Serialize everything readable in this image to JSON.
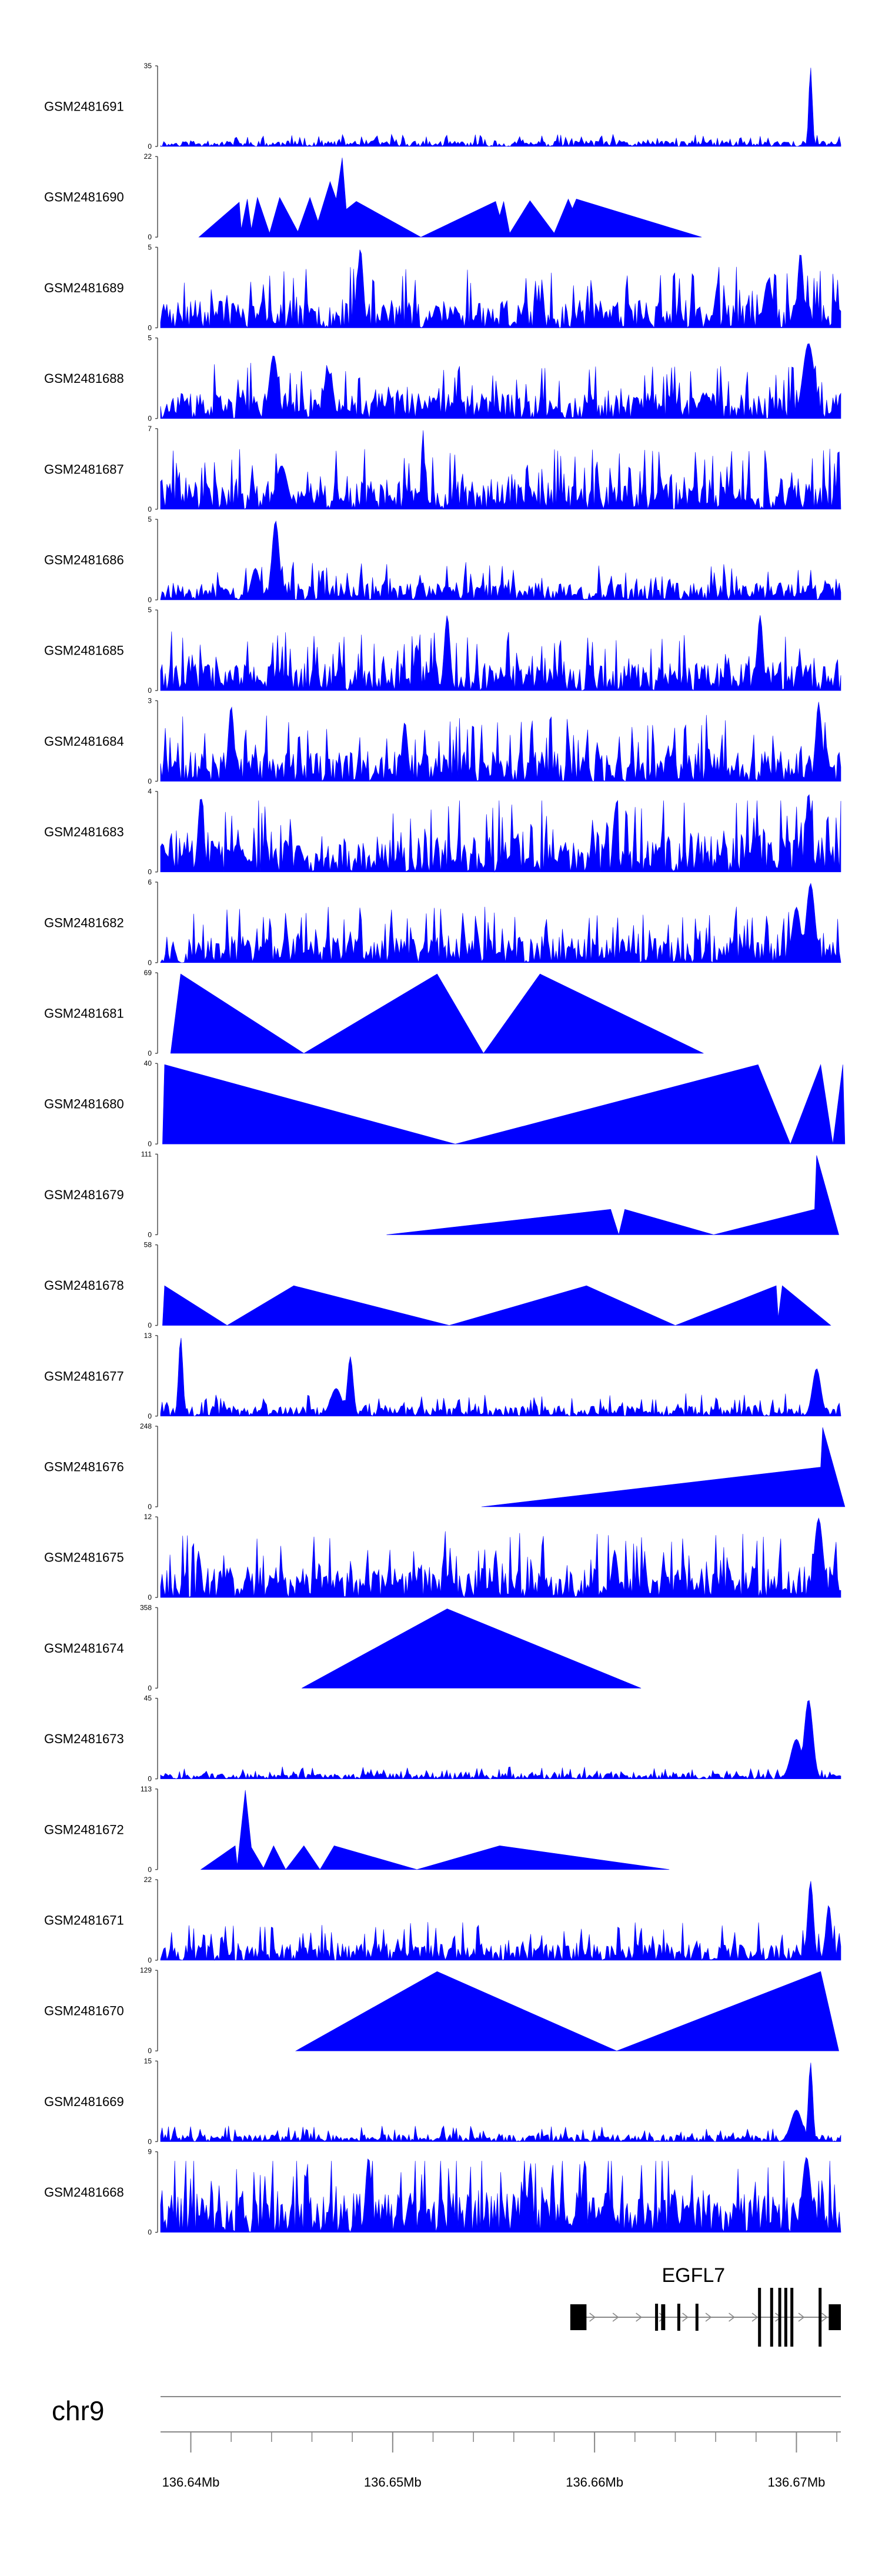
{
  "chart_data": {
    "type": "area",
    "title": "",
    "chromosome": "chr9",
    "x_range_mb": [
      136.6385,
      136.6722
    ],
    "x_ticks": [
      {
        "value": 136.64,
        "label": "136.64Mb"
      },
      {
        "value": 136.65,
        "label": "136.65Mb"
      },
      {
        "value": 136.66,
        "label": "136.66Mb"
      },
      {
        "value": 136.67,
        "label": "136.67Mb"
      }
    ],
    "fill_color": "#0000ff",
    "tracks": [
      {
        "name": "GSM2481691",
        "ymax": "35",
        "mode": "dense",
        "seed": 11,
        "base": 0.07,
        "peaks": [
          [
            136.6707,
            1.0,
            0.00012
          ]
        ]
      },
      {
        "name": "GSM2481690",
        "ymax": "22",
        "mode": "sparse",
        "points": [
          [
            136.6404,
            0
          ],
          [
            136.6424,
            0.44
          ],
          [
            136.6425,
            0.1
          ],
          [
            136.6428,
            0.48
          ],
          [
            136.643,
            0.1
          ],
          [
            136.6433,
            0.5
          ],
          [
            136.6435,
            0.35
          ],
          [
            136.6439,
            0.05
          ],
          [
            136.6444,
            0.5
          ],
          [
            136.6453,
            0.07
          ],
          [
            136.6459,
            0.5
          ],
          [
            136.6463,
            0.2
          ],
          [
            136.6469,
            0.7
          ],
          [
            136.6472,
            0.48
          ],
          [
            136.6475,
            1.0
          ],
          [
            136.6477,
            0.35
          ],
          [
            136.6482,
            0.45
          ],
          [
            136.6514,
            0
          ],
          [
            136.6551,
            0.45
          ],
          [
            136.6553,
            0.27
          ],
          [
            136.6555,
            0.45
          ],
          [
            136.6558,
            0.05
          ],
          [
            136.6568,
            0.46
          ],
          [
            136.658,
            0.05
          ],
          [
            136.6587,
            0.48
          ],
          [
            136.6589,
            0.36
          ],
          [
            136.6591,
            0.48
          ],
          [
            136.6653,
            0
          ]
        ]
      },
      {
        "name": "GSM2481689",
        "ymax": "5",
        "mode": "dense",
        "seed": 23,
        "base": 0.35,
        "peaks": [
          [
            136.6484,
            1.0,
            0.0002
          ],
          [
            136.6702,
            0.95,
            0.0002
          ],
          [
            136.6686,
            0.6,
            0.0003
          ]
        ]
      },
      {
        "name": "GSM2481688",
        "ymax": "5",
        "mode": "dense",
        "seed": 37,
        "base": 0.32,
        "peaks": [
          [
            136.6441,
            0.8,
            0.0003
          ],
          [
            136.6468,
            0.6,
            0.0003
          ],
          [
            136.6706,
            0.95,
            0.0004
          ]
        ]
      },
      {
        "name": "GSM2481687",
        "ymax": "7",
        "mode": "dense",
        "seed": 41,
        "base": 0.35,
        "peaks": [
          [
            136.6515,
            1.0,
            0.00012
          ],
          [
            136.6445,
            0.55,
            0.0004
          ]
        ]
      },
      {
        "name": "GSM2481686",
        "ymax": "5",
        "mode": "dense",
        "seed": 53,
        "base": 0.22,
        "peaks": [
          [
            136.6442,
            1.0,
            0.00025
          ],
          [
            136.6432,
            0.4,
            0.0003
          ]
        ]
      },
      {
        "name": "GSM2481685",
        "ymax": "5",
        "mode": "dense",
        "seed": 61,
        "base": 0.35,
        "peaks": [
          [
            136.6527,
            0.95,
            0.0002
          ],
          [
            136.6682,
            0.95,
            0.0002
          ]
        ]
      },
      {
        "name": "GSM2481684",
        "ymax": "3",
        "mode": "dense",
        "seed": 71,
        "base": 0.38,
        "peaks": [
          [
            136.642,
            0.95,
            0.0002
          ],
          [
            136.6506,
            0.75,
            0.0002
          ],
          [
            136.6711,
            1.0,
            0.0002
          ]
        ]
      },
      {
        "name": "GSM2481683",
        "ymax": "4",
        "mode": "dense",
        "seed": 83,
        "base": 0.45,
        "peaks": [
          [
            136.6405,
            0.95,
            0.0002
          ],
          [
            136.6706,
            1.0,
            0.0002
          ]
        ]
      },
      {
        "name": "GSM2481682",
        "ymax": "6",
        "mode": "dense",
        "seed": 97,
        "base": 0.32,
        "peaks": [
          [
            136.6707,
            1.0,
            0.0003
          ],
          [
            136.67,
            0.7,
            0.0003
          ]
        ]
      },
      {
        "name": "GSM2481681",
        "ymax": "69",
        "mode": "sparse",
        "points": [
          [
            136.639,
            0
          ],
          [
            136.6395,
            1.0
          ],
          [
            136.6456,
            0
          ],
          [
            136.6522,
            1.0
          ],
          [
            136.6545,
            0
          ],
          [
            136.6573,
            1.0
          ],
          [
            136.6654,
            0
          ]
        ]
      },
      {
        "name": "GSM2481680",
        "ymax": "40",
        "mode": "sparse",
        "points": [
          [
            136.6386,
            0
          ],
          [
            136.6387,
            1.0
          ],
          [
            136.6531,
            0
          ],
          [
            136.6681,
            1.0
          ],
          [
            136.6697,
            0
          ],
          [
            136.6712,
            1.0
          ],
          [
            136.6718,
            0
          ],
          [
            136.6723,
            1.0
          ],
          [
            136.6724,
            0
          ]
        ]
      },
      {
        "name": "GSM2481679",
        "ymax": "111",
        "mode": "sparse",
        "points": [
          [
            136.6497,
            0
          ],
          [
            136.6608,
            0.32
          ],
          [
            136.6612,
            0
          ],
          [
            136.6615,
            0.32
          ],
          [
            136.6659,
            0
          ],
          [
            136.6709,
            0.32
          ],
          [
            136.671,
            1.0
          ],
          [
            136.6721,
            0
          ]
        ]
      },
      {
        "name": "GSM2481678",
        "ymax": "58",
        "mode": "sparse",
        "points": [
          [
            136.6386,
            0
          ],
          [
            136.6387,
            0.5
          ],
          [
            136.6418,
            0
          ],
          [
            136.6451,
            0.5
          ],
          [
            136.6528,
            0
          ],
          [
            136.6596,
            0.5
          ],
          [
            136.664,
            0
          ],
          [
            136.669,
            0.5
          ],
          [
            136.6691,
            0.1
          ],
          [
            136.6693,
            0.5
          ],
          [
            136.6717,
            0
          ]
        ]
      },
      {
        "name": "GSM2481677",
        "ymax": "13",
        "mode": "dense",
        "seed": 101,
        "base": 0.13,
        "peaks": [
          [
            136.6395,
            1.0,
            0.00015
          ],
          [
            136.6479,
            0.75,
            0.0002
          ],
          [
            136.6472,
            0.35,
            0.0004
          ],
          [
            136.671,
            0.6,
            0.0003
          ]
        ]
      },
      {
        "name": "GSM2481676",
        "ymax": "248",
        "mode": "sparse",
        "points": [
          [
            136.6544,
            0
          ],
          [
            136.6712,
            0.5
          ],
          [
            136.6713,
            1.0
          ],
          [
            136.6724,
            0
          ]
        ]
      },
      {
        "name": "GSM2481675",
        "ymax": "12",
        "mode": "dense",
        "seed": 113,
        "base": 0.38,
        "peaks": [
          [
            136.6711,
            1.0,
            0.0003
          ],
          [
            136.661,
            0.6,
            0.0002
          ]
        ]
      },
      {
        "name": "GSM2481674",
        "ymax": "358",
        "mode": "sparse",
        "points": [
          [
            136.6455,
            0
          ],
          [
            136.6527,
            1.0
          ],
          [
            136.6623,
            0
          ]
        ]
      },
      {
        "name": "GSM2481673",
        "ymax": "45",
        "mode": "dense",
        "seed": 127,
        "base": 0.07,
        "peaks": [
          [
            136.6706,
            1.0,
            0.0003
          ],
          [
            136.67,
            0.5,
            0.0004
          ]
        ]
      },
      {
        "name": "GSM2481672",
        "ymax": "113",
        "mode": "sparse",
        "points": [
          [
            136.6405,
            0
          ],
          [
            136.6422,
            0.3
          ],
          [
            136.6423,
            0.05
          ],
          [
            136.6427,
            1.0
          ],
          [
            136.643,
            0.28
          ],
          [
            136.6436,
            0.02
          ],
          [
            136.6441,
            0.3
          ],
          [
            136.6447,
            0
          ],
          [
            136.6456,
            0.3
          ],
          [
            136.6464,
            0
          ],
          [
            136.6471,
            0.3
          ],
          [
            136.6512,
            0
          ],
          [
            136.6553,
            0.3
          ],
          [
            136.6637,
            0
          ]
        ]
      },
      {
        "name": "GSM2481671",
        "ymax": "22",
        "mode": "dense",
        "seed": 131,
        "base": 0.22,
        "peaks": [
          [
            136.6707,
            1.0,
            0.0002
          ],
          [
            136.6716,
            0.7,
            0.0002
          ]
        ]
      },
      {
        "name": "GSM2481670",
        "ymax": "129",
        "mode": "sparse",
        "points": [
          [
            136.6452,
            0
          ],
          [
            136.6522,
            1.0
          ],
          [
            136.6611,
            0
          ],
          [
            136.6712,
            1.0
          ],
          [
            136.6721,
            0
          ]
        ]
      },
      {
        "name": "GSM2481669",
        "ymax": "15",
        "mode": "dense",
        "seed": 139,
        "base": 0.09,
        "peaks": [
          [
            136.6707,
            1.0,
            0.00015
          ],
          [
            136.67,
            0.4,
            0.0004
          ]
        ]
      },
      {
        "name": "GSM2481668",
        "ymax": "9",
        "mode": "dense",
        "seed": 149,
        "base": 0.5,
        "peaks": [
          [
            136.6488,
            0.95,
            0.0002
          ],
          [
            136.6705,
            0.95,
            0.0003
          ]
        ]
      }
    ],
    "gene": {
      "name": "EGFL7",
      "strand": "+",
      "start": 136.6588,
      "end": 136.6722,
      "exons": [
        [
          136.6588,
          136.6596,
          "wide"
        ],
        [
          136.663,
          136.6631,
          "thin"
        ],
        [
          136.6633,
          136.6635,
          "wide"
        ],
        [
          136.6641,
          136.6642,
          "thin"
        ],
        [
          136.665,
          136.6651,
          "thin"
        ],
        [
          136.6681,
          136.6682,
          "tall"
        ],
        [
          136.6687,
          136.6688,
          "tall"
        ],
        [
          136.6691,
          136.6692,
          "tall"
        ],
        [
          136.6694,
          136.6695,
          "tall"
        ],
        [
          136.6697,
          136.6698,
          "tall"
        ],
        [
          136.6711,
          136.6712,
          "tall"
        ],
        [
          136.6716,
          136.6722,
          "wide"
        ]
      ]
    }
  }
}
